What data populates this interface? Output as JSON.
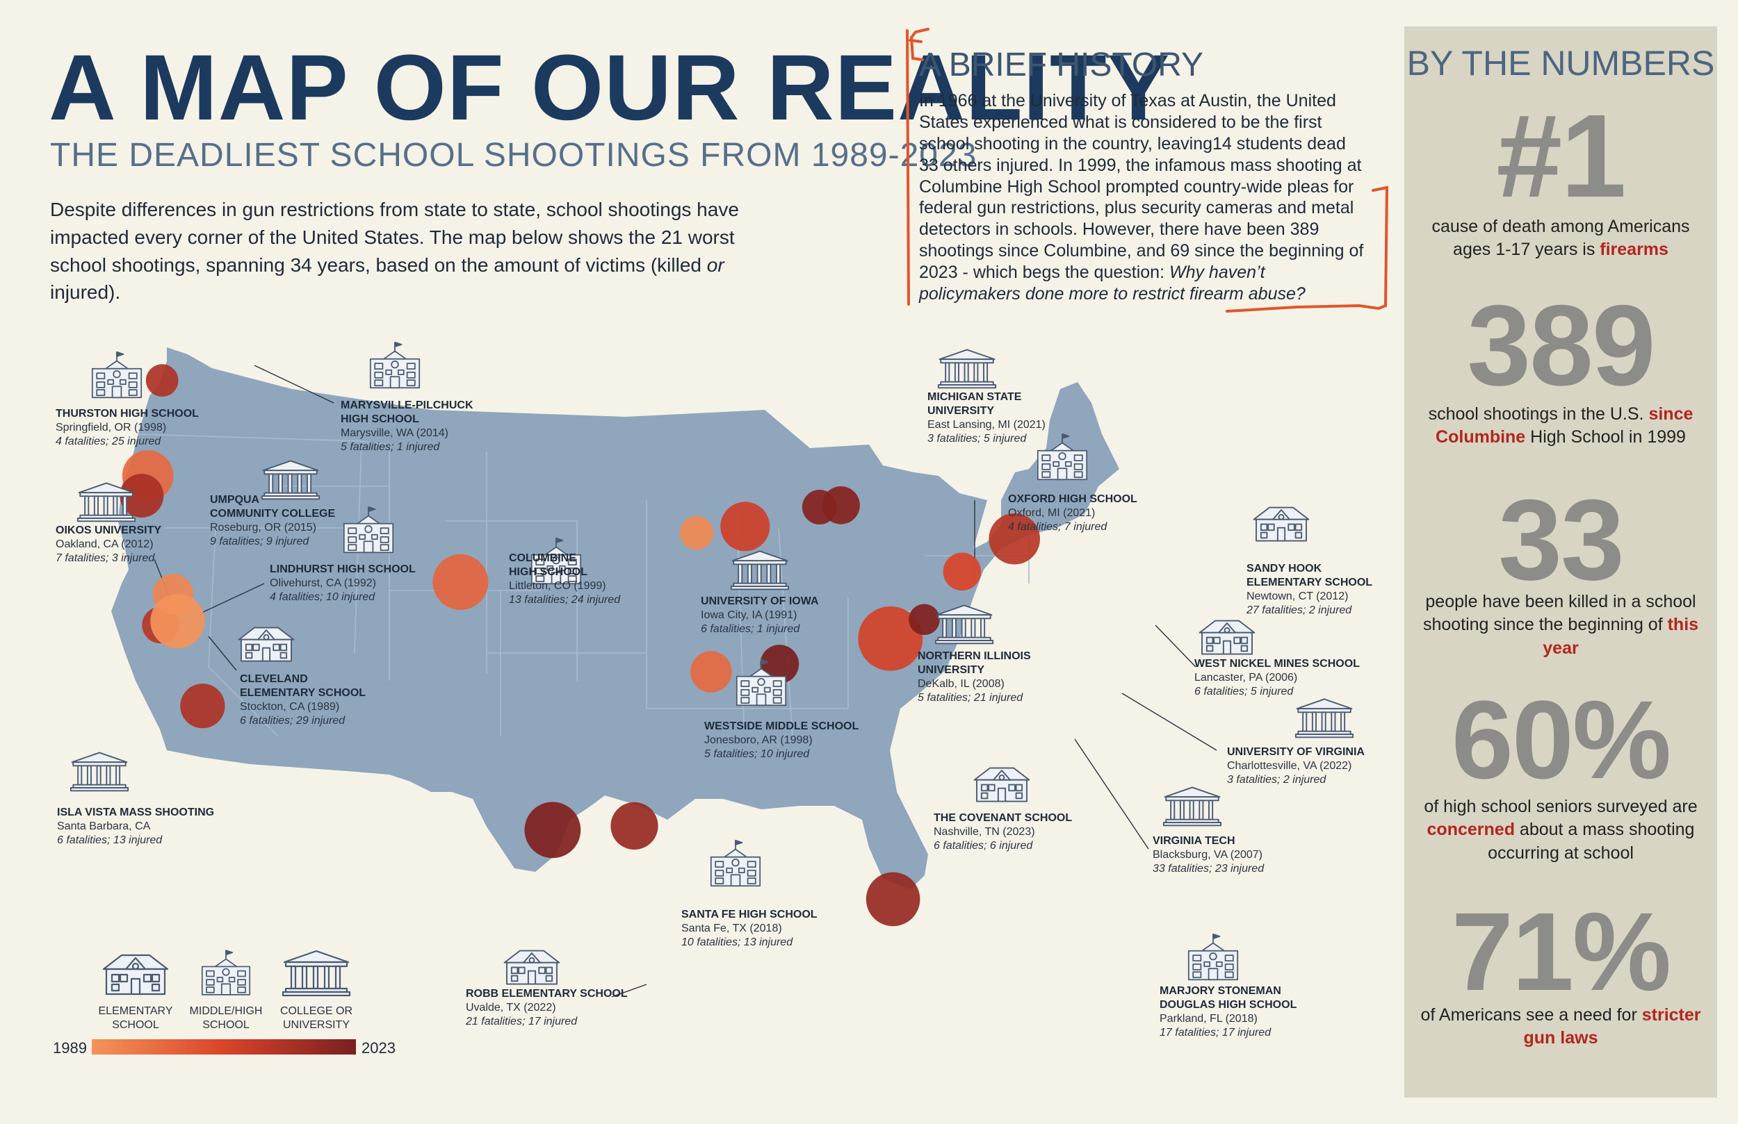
{
  "title": "A MAP OF OUR REALITY",
  "subtitle": "THE DEADLIEST SCHOOL SHOOTINGS FROM 1989-2023",
  "intro": {
    "text": "Despite differences in gun restrictions from state to state, school shootings have impacted every corner of the United States. The map below shows the 21 worst school shootings, spanning 34 years, based on the amount of victims (killed or ",
    "italic": "or",
    "text_end": "injured)."
  },
  "history": {
    "title": "A BRIEF HISTORY",
    "text": "In 1966 at the University of Texas at Austin, the United States experienced what is considered to be the first school shooting in the country, leaving14 students dead 33 others injured. In 1999, the infamous mass shooting at Columbine High School prompted country-wide pleas for federal gun restrictions, plus security cameras and metal detectors in schools. However, there have been 389 shootings since Columbine, and 69 since the beginning of 2023 - which begs the question: ",
    "question": "Why haven’t policymakers done more to restrict firearm abuse?"
  },
  "numbers": {
    "title": "BY THE NUMBERS",
    "stats": [
      {
        "big": "#1",
        "pre": "cause of death among Americans ages 1-17 years is ",
        "hl": "firearms",
        "post": ""
      },
      {
        "big": "389",
        "pre": "school shootings in the U.S. ",
        "hl": "since Columbine",
        "post": " High School in 1999"
      },
      {
        "big": "33",
        "pre": "people have been killed in a school shooting since the beginning of ",
        "hl": "this year",
        "post": ""
      },
      {
        "big": "60%",
        "pre": "of high school seniors surveyed are ",
        "hl": "concerned",
        "post": " about a mass shooting occurring at school"
      },
      {
        "big": "71%",
        "pre": "of Americans see a need for ",
        "hl": "stricter gun laws",
        "post": ""
      }
    ]
  },
  "legend": {
    "types": [
      "ELEMENTARY SCHOOL",
      "MIDDLE/HIGH SCHOOL",
      "COLLEGE OR UNIVERSITY"
    ],
    "types_lines": [
      [
        "ELEMENTARY",
        "SCHOOL"
      ],
      [
        "MIDDLE/HIGH",
        "SCHOOL"
      ],
      [
        "COLLEGE OR",
        "UNIVERSITY"
      ]
    ],
    "year_start": "1989",
    "year_end": "2023"
  },
  "colors": {
    "map_fill": "#8fa6bc",
    "early": "#f4935a",
    "late": "#7a1f1f",
    "accent_red": "#b3261e",
    "frame_orange": "#e0562c"
  },
  "shootings": [
    {
      "name": [
        "THURSTON HIGH SCHOOL"
      ],
      "place": "Springfield, OR (1998)",
      "stats": "4 fatalities; 25 injured",
      "type": "school",
      "year": 1998,
      "lat": 44.05,
      "lon": -123.0
    },
    {
      "name": [
        "MARYSVILLE-PILCHUCK",
        "HIGH SCHOOL"
      ],
      "place": "Marysville, WA (2014)",
      "stats": "5 fatalities; 1 injured",
      "type": "school",
      "year": 2014,
      "lat": 48.05,
      "lon": -122.18
    },
    {
      "name": [
        "UMPQUA",
        "COMMUNITY COLLEGE"
      ],
      "place": "Roseburg, OR (2015)",
      "stats": "9 fatalities; 9 injured",
      "type": "college",
      "year": 2015,
      "lat": 43.22,
      "lon": -123.35
    },
    {
      "name": [
        "OIKOS UNIVERSITY"
      ],
      "place": "Oakland, CA (2012)",
      "stats": "7 fatalities; 3 injured",
      "type": "college",
      "year": 2012,
      "lat": 37.8,
      "lon": -122.27
    },
    {
      "name": [
        "LINDHURST HIGH SCHOOL"
      ],
      "place": "Olivehurst, CA (1992)",
      "stats": "4 fatalities; 10 injured",
      "type": "school",
      "year": 1992,
      "lat": 39.09,
      "lon": -121.55
    },
    {
      "name": [
        "CLEVELAND",
        "ELEMENTARY SCHOOL"
      ],
      "place": "Stockton, CA (1989)",
      "stats": "6 fatalities; 29 injured",
      "type": "elementary",
      "year": 1989,
      "lat": 37.96,
      "lon": -121.29
    },
    {
      "name": [
        "ISLA VISTA MASS SHOOTING"
      ],
      "place": "Santa Barbara, CA",
      "stats": "6 fatalities; 13 injured",
      "type": "college",
      "year": 2014,
      "lat": 34.41,
      "lon": -119.86
    },
    {
      "name": [
        "COLUMBINE",
        "HIGH SCHOOL"
      ],
      "place": "Littleton, CO (1999)",
      "stats": "13 fatalities; 24 injured",
      "type": "school",
      "year": 1999,
      "lat": 39.6,
      "lon": -105.07
    },
    {
      "name": [
        "UNIVERSITY OF IOWA"
      ],
      "place": "Iowa City, IA (1991)",
      "stats": "6 fatalities; 1 injured",
      "type": "college",
      "year": 1991,
      "lat": 41.66,
      "lon": -91.53
    },
    {
      "name": [
        "WESTSIDE MIDDLE SCHOOL"
      ],
      "place": "Jonesboro, AR (1998)",
      "stats": "5 fatalities; 10 injured",
      "type": "school",
      "year": 1998,
      "lat": 35.84,
      "lon": -90.7
    },
    {
      "name": [
        "SANTA FE HIGH SCHOOL"
      ],
      "place": "Santa Fe, TX (2018)",
      "stats": "10 fatalities; 13 injured",
      "type": "school",
      "year": 2018,
      "lat": 29.38,
      "lon": -95.1
    },
    {
      "name": [
        "ROBB ELEMENTARY SCHOOL"
      ],
      "place": "Uvalde, TX (2022)",
      "stats": "21 fatalities; 17 injured",
      "type": "elementary",
      "year": 2022,
      "lat": 29.21,
      "lon": -99.79
    },
    {
      "name": [
        "MICHIGAN STATE",
        "UNIVERSITY"
      ],
      "place": "East Lansing, MI (2021)",
      "stats": "3 fatalities; 5 injured",
      "type": "college",
      "year": 2021,
      "lat": 42.74,
      "lon": -84.48
    },
    {
      "name": [
        "OXFORD HIGH SCHOOL"
      ],
      "place": "Oxford, MI (2021)",
      "stats": "4 fatalities; 7 injured",
      "type": "school",
      "year": 2021,
      "lat": 42.82,
      "lon": -83.26
    },
    {
      "name": [
        "NORTHERN ILLINOIS",
        "UNIVERSITY"
      ],
      "place": "DeKalb, IL (2008)",
      "stats": "5 fatalities; 21 injured",
      "type": "college",
      "year": 2008,
      "lat": 41.93,
      "lon": -88.75
    },
    {
      "name": [
        "THE COVENANT SCHOOL"
      ],
      "place": "Nashville, TN (2023)",
      "stats": "6 fatalities; 6 injured",
      "type": "elementary",
      "year": 2023,
      "lat": 36.16,
      "lon": -86.78
    },
    {
      "name": [
        "VIRGINIA TECH"
      ],
      "place": "Blacksburg, VA (2007)",
      "stats": "33 fatalities; 23 injured",
      "type": "college",
      "year": 2007,
      "lat": 37.23,
      "lon": -80.42
    },
    {
      "name": [
        "UNIVERSITY OF VIRGINIA"
      ],
      "place": "Charlottesville, VA (2022)",
      "stats": "3 fatalities; 2 injured",
      "type": "college",
      "year": 2022,
      "lat": 38.03,
      "lon": -78.48
    },
    {
      "name": [
        "SANDY HOOK",
        "ELEMENTARY SCHOOL"
      ],
      "place": "Newtown, CT (2012)",
      "stats": "27 fatalities; 2 injured",
      "type": "elementary",
      "year": 2012,
      "lat": 41.41,
      "lon": -73.31
    },
    {
      "name": [
        "WEST NICKEL MINES SCHOOL"
      ],
      "place": "Lancaster, PA (2006)",
      "stats": "6 fatalities; 5 injured",
      "type": "elementary",
      "year": 2006,
      "lat": 40.04,
      "lon": -76.31
    },
    {
      "name": [
        "MARJORY STONEMAN",
        "DOUGLAS HIGH SCHOOL"
      ],
      "place": "Parkland, FL (2018)",
      "stats": "17 fatalities; 17 injured",
      "type": "school",
      "year": 2018,
      "lat": 26.31,
      "lon": -80.27
    }
  ]
}
